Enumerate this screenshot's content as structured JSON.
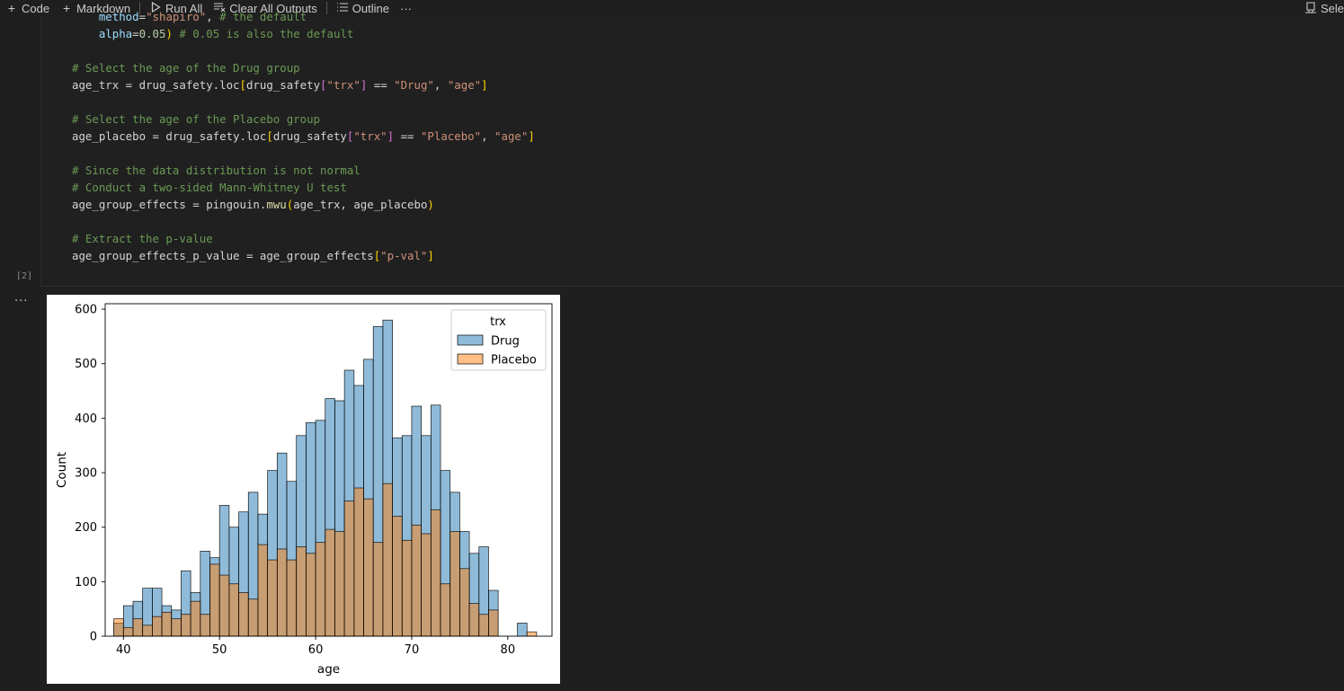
{
  "toolbar": {
    "code_label": "Code",
    "markdown_label": "Markdown",
    "run_all_label": "Run All",
    "clear_outputs_label": "Clear All Outputs",
    "outline_label": "Outline",
    "more_label": "···",
    "select_label": "Sele",
    "icons": [
      "plus-icon",
      "plus-icon",
      "play-icon",
      "clear-icon",
      "list-icon",
      "ellipsis-icon",
      "kernel-icon"
    ]
  },
  "cell": {
    "execution_count": "[2]",
    "output_more": "···",
    "code_lines": [
      "    method=\"shapiro\", # the default",
      "    alpha=0.05) # 0.05 is also the default",
      "",
      "# Select the age of the Drug group",
      "age_trx = drug_safety.loc[drug_safety[\"trx\"] == \"Drug\", \"age\"]",
      "",
      "# Select the age of the Placebo group",
      "age_placebo = drug_safety.loc[drug_safety[\"trx\"] == \"Placebo\", \"age\"]",
      "",
      "# Since the data distribution is not normal",
      "# Conduct a two-sided Mann-Whitney U test",
      "age_group_effects = pingouin.mwu(age_trx, age_placebo)",
      "",
      "# Extract the p-value",
      "age_group_effects_p_value = age_group_effects[\"p-val\"]"
    ]
  },
  "chart_data": {
    "type": "bar",
    "title": "",
    "xlabel": "age",
    "ylabel": "Count",
    "xlim": [
      38.1,
      84.6
    ],
    "ylim": [
      0,
      610
    ],
    "xticks": [
      40,
      50,
      60,
      70,
      80
    ],
    "yticks": [
      0,
      100,
      200,
      300,
      400,
      500,
      600
    ],
    "bin_start": 39,
    "bin_width": 1,
    "legend": {
      "title": "trx",
      "placement": "top-right"
    },
    "grid": false,
    "series": [
      {
        "name": "Drug",
        "color": "#1f77b4",
        "values": [
          24,
          56,
          64,
          88,
          88,
          56,
          48,
          120,
          80,
          156,
          144,
          240,
          200,
          228,
          264,
          224,
          304,
          336,
          284,
          368,
          392,
          396,
          436,
          432,
          488,
          460,
          508,
          568,
          580,
          364,
          368,
          422,
          368,
          424,
          304,
          264,
          192,
          152,
          164,
          84,
          0,
          0,
          24,
          0
        ]
      },
      {
        "name": "Placebo",
        "color": "#ff7f0e",
        "values": [
          32,
          16,
          32,
          20,
          36,
          44,
          32,
          40,
          64,
          40,
          132,
          112,
          96,
          80,
          68,
          168,
          140,
          160,
          140,
          164,
          152,
          172,
          196,
          192,
          248,
          272,
          252,
          172,
          280,
          220,
          176,
          204,
          188,
          232,
          96,
          192,
          124,
          60,
          40,
          48,
          0,
          0,
          0,
          8
        ]
      }
    ]
  }
}
